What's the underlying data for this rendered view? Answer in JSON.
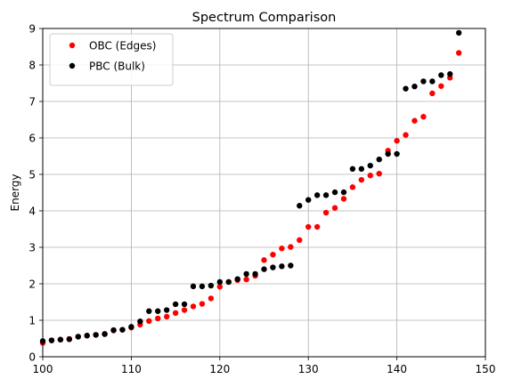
{
  "chart_data": {
    "type": "scatter",
    "title": "Spectrum Comparison",
    "xlabel": "",
    "ylabel": "Energy",
    "xlim": [
      100,
      150
    ],
    "ylim": [
      0,
      9
    ],
    "xticks": [
      100,
      110,
      120,
      130,
      140,
      150
    ],
    "yticks": [
      0,
      1,
      2,
      3,
      4,
      5,
      6,
      7,
      8,
      9
    ],
    "grid": true,
    "legend_position": "top-left",
    "series": [
      {
        "name": "OBC (Edges)",
        "color": "#ff0000",
        "x": [
          100,
          101,
          102,
          103,
          104,
          105,
          106,
          107,
          108,
          109,
          110,
          111,
          112,
          113,
          114,
          115,
          116,
          117,
          118,
          119,
          120,
          121,
          122,
          123,
          124,
          125,
          126,
          127,
          128,
          129,
          130,
          131,
          132,
          133,
          134,
          135,
          136,
          137,
          138,
          139,
          140,
          141,
          142,
          143,
          144,
          145,
          146,
          147
        ],
        "y": [
          0.38,
          0.45,
          0.47,
          0.49,
          0.55,
          0.58,
          0.6,
          0.63,
          0.72,
          0.74,
          0.8,
          0.88,
          0.98,
          1.05,
          1.1,
          1.2,
          1.28,
          1.38,
          1.45,
          1.6,
          1.92,
          2.05,
          2.1,
          2.12,
          2.22,
          2.65,
          2.8,
          2.97,
          3.01,
          3.2,
          3.56,
          3.56,
          3.95,
          4.08,
          4.33,
          4.65,
          4.85,
          4.97,
          5.02,
          5.65,
          5.92,
          6.08,
          6.47,
          6.58,
          7.22,
          7.42,
          7.65,
          8.33
        ]
      },
      {
        "name": "PBC (Bulk)",
        "color": "#000000",
        "x": [
          100,
          101,
          102,
          103,
          104,
          105,
          106,
          107,
          108,
          109,
          110,
          111,
          112,
          113,
          114,
          115,
          116,
          117,
          118,
          119,
          120,
          121,
          122,
          123,
          124,
          125,
          126,
          127,
          128,
          129,
          130,
          131,
          132,
          133,
          134,
          135,
          136,
          137,
          138,
          139,
          140,
          141,
          142,
          143,
          144,
          145,
          146,
          147
        ],
        "y": [
          0.43,
          0.45,
          0.47,
          0.48,
          0.55,
          0.58,
          0.6,
          0.62,
          0.73,
          0.74,
          0.82,
          0.97,
          1.25,
          1.25,
          1.28,
          1.44,
          1.44,
          1.93,
          1.93,
          1.95,
          2.05,
          2.05,
          2.13,
          2.27,
          2.27,
          2.4,
          2.45,
          2.48,
          2.5,
          4.14,
          4.3,
          4.43,
          4.43,
          4.51,
          4.51,
          5.15,
          5.15,
          5.24,
          5.41,
          5.56,
          5.56,
          7.35,
          7.41,
          7.55,
          7.55,
          7.72,
          7.75,
          8.88
        ]
      }
    ]
  }
}
